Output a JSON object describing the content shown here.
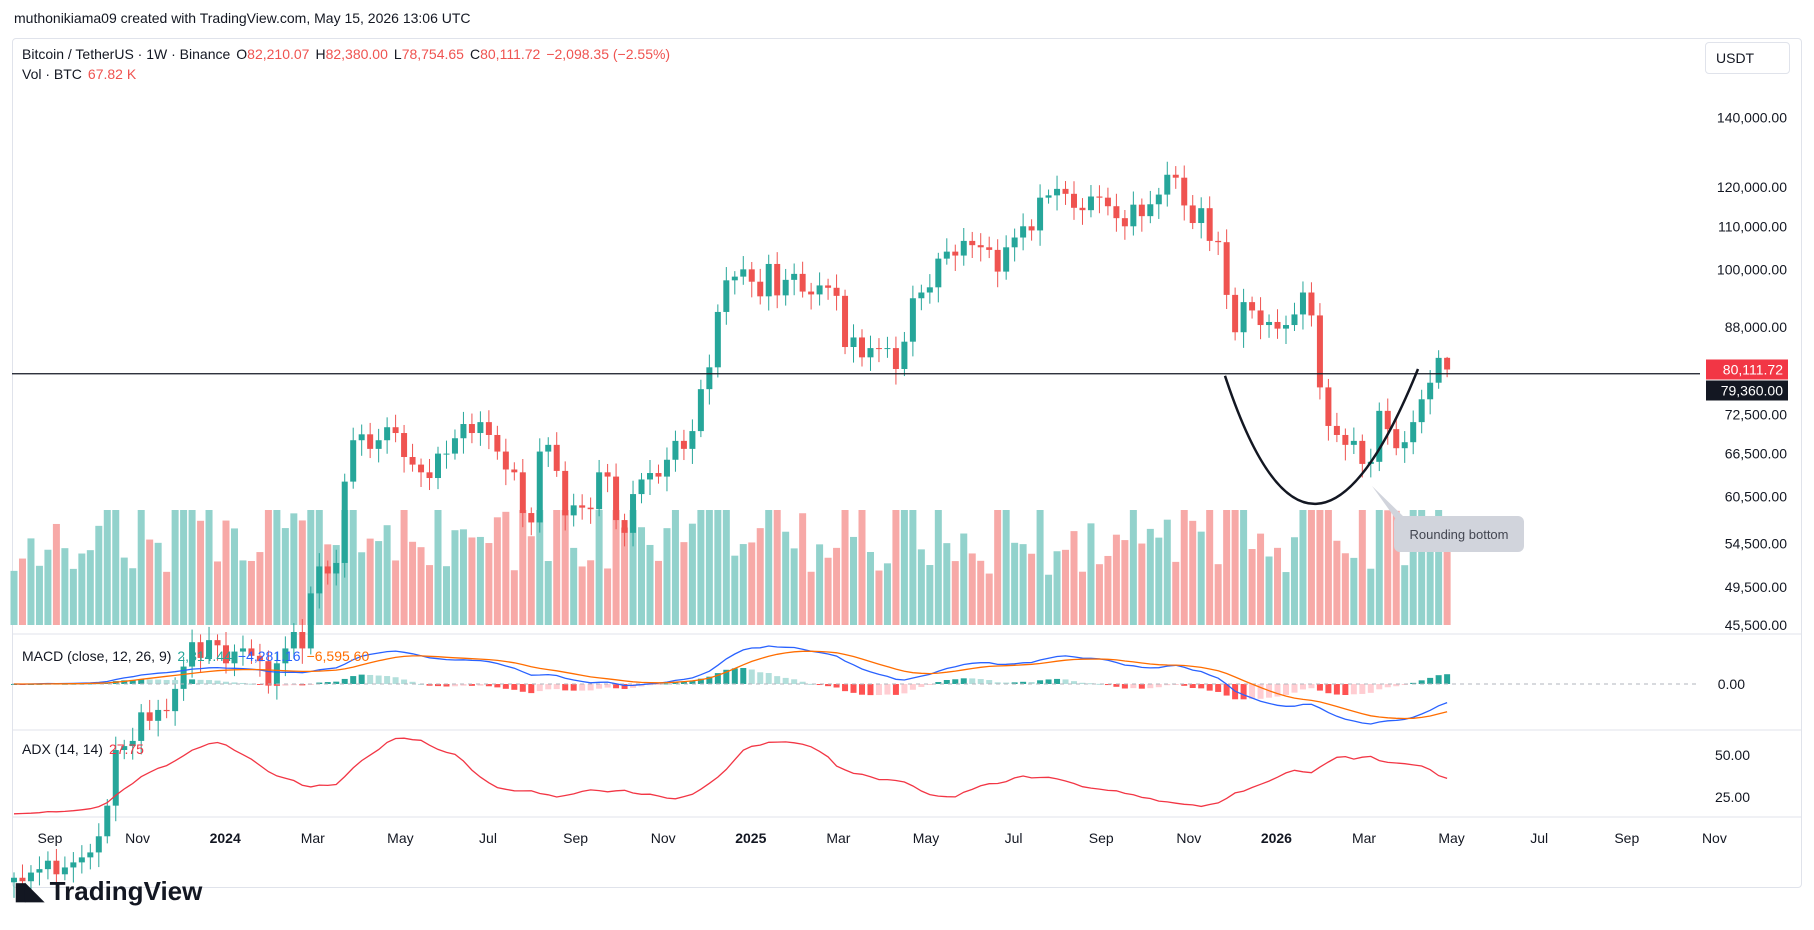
{
  "header": {
    "text": "muthonikiama09 created with TradingView.com, May 15, 2026 13:06 UTC"
  },
  "legend": {
    "symbol": "Bitcoin / TetherUS · 1W · Binance",
    "o_label": "O",
    "o_value": "82,210.07",
    "h_label": "H",
    "h_value": "82,380.00",
    "l_label": "L",
    "l_value": "78,754.65",
    "c_label": "C",
    "c_value": "80,111.72",
    "change": "−2,098.35 (−2.55%)",
    "vol_label": "Vol · BTC",
    "vol_value": "67.82 K",
    "macd_label": "MACD (close, 12, 26, 9)",
    "macd_hist": "2,314.44",
    "macd_line": "−4,281.16",
    "macd_signal": "−6,595.60",
    "adx_label": "ADX (14, 14)",
    "adx_value": "27.75"
  },
  "currency_button": "USDT",
  "annotation": "Rounding bottom",
  "price_tags": {
    "last": "80,111.72",
    "level": "79,360.00"
  },
  "logo": "TradingView",
  "colors": {
    "up": "#26a69a",
    "down": "#ef5350",
    "macd": "#2962ff",
    "signal": "#ff6d00",
    "adx": "#f23645",
    "up_vol": "#92d2cc",
    "down_vol": "#f7a9a7"
  },
  "chart_data": {
    "type": "candlestick",
    "scale": "log",
    "price_ticks": [
      140000,
      120000,
      110000,
      100000,
      88000,
      72500,
      66500,
      60500,
      54500,
      49500,
      45500
    ],
    "price_tick_labels": [
      "140,000.00",
      "120,000.00",
      "110,000.00",
      "100,000.00",
      "88,000.00",
      "72,500.00",
      "66,500.00",
      "60,500.00",
      "54,500.00",
      "49,500.00",
      "45,500.00"
    ],
    "horizontal_level": 79360,
    "x_labels": [
      "Sep",
      "Nov",
      "2024",
      "Mar",
      "May",
      "Jul",
      "Sep",
      "Nov",
      "2025",
      "Mar",
      "May",
      "Jul",
      "Sep",
      "Nov",
      "2026",
      "Mar",
      "May",
      "Jul",
      "Sep",
      "Nov"
    ],
    "x_label_bold": [
      false,
      false,
      true,
      false,
      false,
      false,
      false,
      false,
      true,
      false,
      false,
      false,
      false,
      false,
      true,
      false,
      false,
      false,
      false,
      false
    ],
    "closes": [
      26000,
      25800,
      26300,
      26500,
      27000,
      26200,
      26600,
      26900,
      27200,
      27500,
      28500,
      30500,
      34500,
      34800,
      35200,
      37500,
      36800,
      37700,
      37600,
      39500,
      41500,
      43800,
      42300,
      44000,
      43500,
      41800,
      42900,
      43200,
      42500,
      42000,
      39800,
      41800,
      43200,
      44800,
      43200,
      48800,
      51800,
      51000,
      52200,
      62500,
      68500,
      69400,
      67200,
      68500,
      70500,
      69600,
      66000,
      64900,
      63800,
      63000,
      66500,
      66500,
      68800,
      71000,
      69600,
      71300,
      69300,
      66800,
      64200,
      63800,
      58300,
      57100,
      66800,
      67800,
      64000,
      58000,
      59300,
      59000,
      58800,
      63800,
      63200,
      57400,
      55800,
      60800,
      62800,
      63700,
      63200,
      65600,
      68400,
      67200,
      69900,
      76700,
      80500,
      91000,
      97600,
      98400,
      100000,
      97300,
      94200,
      101200,
      94400,
      97700,
      99000,
      95200,
      94600,
      96500,
      96000,
      94300,
      84200,
      86000,
      82300,
      84000,
      83900,
      84000,
      80200,
      85200,
      93800,
      95000,
      96100,
      102400,
      104000,
      103100,
      106500,
      105500,
      105000,
      104400,
      99500,
      105000,
      107300,
      110000,
      109000,
      117200,
      117800,
      119500,
      118200,
      114600,
      114000,
      117500,
      117200,
      115000,
      112000,
      110000,
      115400,
      112500,
      115500,
      118000,
      123300,
      122500,
      115200,
      110800,
      114500,
      106500,
      106200,
      94500,
      87000,
      93000,
      91300,
      88400,
      89000,
      87700,
      88400,
      90500,
      95000,
      90300,
      77000,
      70700,
      69300,
      67800,
      68400,
      65000,
      65300,
      73100,
      70200,
      67300,
      68200,
      71300,
      75000,
      77800,
      82200,
      80112
    ],
    "vol_indicator": "volume",
    "macd": {
      "fast": 12,
      "slow": 26,
      "signal": 9,
      "axis_label": "0.00"
    },
    "adx": {
      "period": 14,
      "axis_labels": [
        "50.00",
        "25.00"
      ],
      "axis_values": [
        50,
        25
      ]
    }
  }
}
